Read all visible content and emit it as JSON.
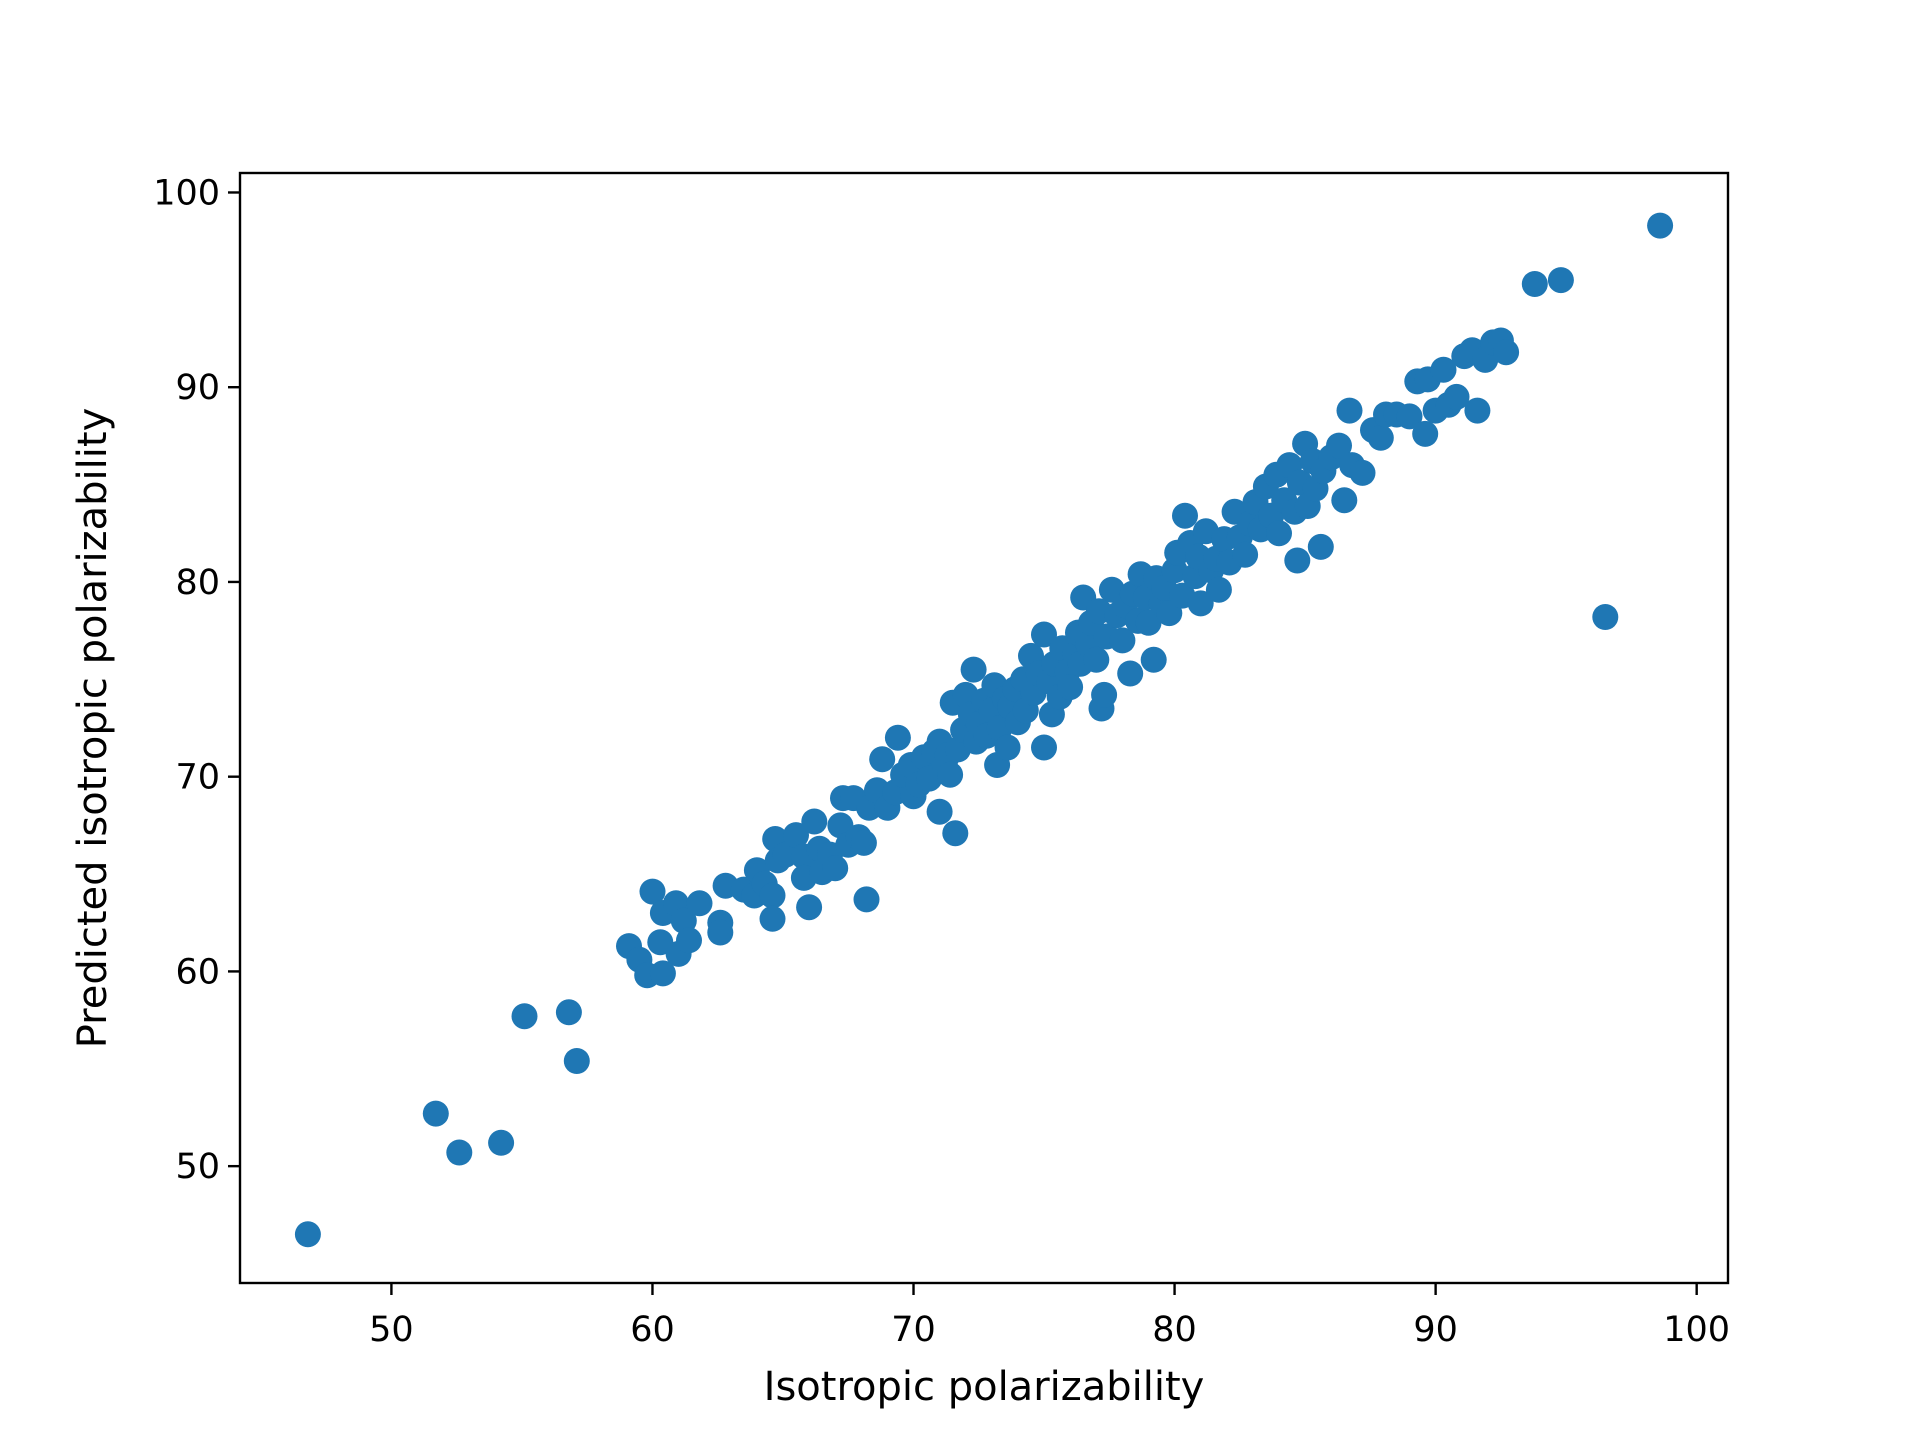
{
  "chart_data": {
    "type": "scatter",
    "xlabel": "Isotropic polarizability",
    "ylabel": "Predicted isotropic polarizability",
    "xlim": [
      44.2,
      101.2
    ],
    "ylim": [
      44.0,
      101.0
    ],
    "xticks": [
      50,
      60,
      70,
      80,
      90,
      100
    ],
    "yticks": [
      50,
      60,
      70,
      80,
      90,
      100
    ],
    "grid": false,
    "marker_color": "#1f77b4",
    "series": [
      {
        "points": [
          [
            46.8,
            46.5
          ],
          [
            51.7,
            52.7
          ],
          [
            52.6,
            50.7
          ],
          [
            54.2,
            51.2
          ],
          [
            55.1,
            57.7
          ],
          [
            56.8,
            57.9
          ],
          [
            57.1,
            55.4
          ],
          [
            59.1,
            61.3
          ],
          [
            59.5,
            60.6
          ],
          [
            59.8,
            59.8
          ],
          [
            60.0,
            64.1
          ],
          [
            60.3,
            61.5
          ],
          [
            60.4,
            63.0
          ],
          [
            60.4,
            59.9
          ],
          [
            60.9,
            63.5
          ],
          [
            61.0,
            60.9
          ],
          [
            61.2,
            62.6
          ],
          [
            61.4,
            61.6
          ],
          [
            61.8,
            63.5
          ],
          [
            62.6,
            62.5
          ],
          [
            62.6,
            62.0
          ],
          [
            62.8,
            64.4
          ],
          [
            63.5,
            64.2
          ],
          [
            63.9,
            63.9
          ],
          [
            64.0,
            65.2
          ],
          [
            64.3,
            64.5
          ],
          [
            64.6,
            63.9
          ],
          [
            64.6,
            62.7
          ],
          [
            64.7,
            66.8
          ],
          [
            64.8,
            65.7
          ],
          [
            65.1,
            66.0
          ],
          [
            65.5,
            67.0
          ],
          [
            65.8,
            65.9
          ],
          [
            65.8,
            64.8
          ],
          [
            66.0,
            63.3
          ],
          [
            66.2,
            67.7
          ],
          [
            66.4,
            66.3
          ],
          [
            66.5,
            65.1
          ],
          [
            66.8,
            66.0
          ],
          [
            67.0,
            65.3
          ],
          [
            67.2,
            67.5
          ],
          [
            67.3,
            68.9
          ],
          [
            67.5,
            66.5
          ],
          [
            67.7,
            68.9
          ],
          [
            67.9,
            66.9
          ],
          [
            68.1,
            66.6
          ],
          [
            68.2,
            63.7
          ],
          [
            68.3,
            68.4
          ],
          [
            68.6,
            69.3
          ],
          [
            68.8,
            70.9
          ],
          [
            69.0,
            68.4
          ],
          [
            69.3,
            69.2
          ],
          [
            69.4,
            72.0
          ],
          [
            69.6,
            70.1
          ],
          [
            69.9,
            70.6
          ],
          [
            70.0,
            69.0
          ],
          [
            70.2,
            69.6
          ],
          [
            70.4,
            71.0
          ],
          [
            70.6,
            69.9
          ],
          [
            70.8,
            71.3
          ],
          [
            71.0,
            68.2
          ],
          [
            71.0,
            71.8
          ],
          [
            71.2,
            70.6
          ],
          [
            71.3,
            71.1
          ],
          [
            71.4,
            70.1
          ],
          [
            71.5,
            73.8
          ],
          [
            71.6,
            67.1
          ],
          [
            71.7,
            71.4
          ],
          [
            71.9,
            72.4
          ],
          [
            72.0,
            74.2
          ],
          [
            72.2,
            73.2
          ],
          [
            72.3,
            75.5
          ],
          [
            72.4,
            71.8
          ],
          [
            72.5,
            72.7
          ],
          [
            72.7,
            73.9
          ],
          [
            72.8,
            72.1
          ],
          [
            73.0,
            73.4
          ],
          [
            73.1,
            74.7
          ],
          [
            73.2,
            70.6
          ],
          [
            73.3,
            72.5
          ],
          [
            73.5,
            74.0
          ],
          [
            73.6,
            71.5
          ],
          [
            73.7,
            73.6
          ],
          [
            73.9,
            74.5
          ],
          [
            74.0,
            72.8
          ],
          [
            74.2,
            75.0
          ],
          [
            74.3,
            73.4
          ],
          [
            74.5,
            76.2
          ],
          [
            74.6,
            74.3
          ],
          [
            74.8,
            75.3
          ],
          [
            75.0,
            71.5
          ],
          [
            75.0,
            77.3
          ],
          [
            75.2,
            74.9
          ],
          [
            75.3,
            73.2
          ],
          [
            75.4,
            75.8
          ],
          [
            75.6,
            74.1
          ],
          [
            75.7,
            76.6
          ],
          [
            75.9,
            75.4
          ],
          [
            76.0,
            74.6
          ],
          [
            76.2,
            76.3
          ],
          [
            76.3,
            77.4
          ],
          [
            76.4,
            75.8
          ],
          [
            76.5,
            79.2
          ],
          [
            76.7,
            76.8
          ],
          [
            76.8,
            77.9
          ],
          [
            77.0,
            76.0
          ],
          [
            77.1,
            78.5
          ],
          [
            77.2,
            73.5
          ],
          [
            77.3,
            74.2
          ],
          [
            77.4,
            77.2
          ],
          [
            77.6,
            79.6
          ],
          [
            77.8,
            78.3
          ],
          [
            78.0,
            77.0
          ],
          [
            78.1,
            78.8
          ],
          [
            78.3,
            75.3
          ],
          [
            78.4,
            79.4
          ],
          [
            78.6,
            78.0
          ],
          [
            78.7,
            80.4
          ],
          [
            78.9,
            79.2
          ],
          [
            79.0,
            77.9
          ],
          [
            79.2,
            76.0
          ],
          [
            79.3,
            80.2
          ],
          [
            79.5,
            78.9
          ],
          [
            79.6,
            79.7
          ],
          [
            79.8,
            78.4
          ],
          [
            80.0,
            80.6
          ],
          [
            80.1,
            81.5
          ],
          [
            80.3,
            79.3
          ],
          [
            80.4,
            83.4
          ],
          [
            80.6,
            82.0
          ],
          [
            80.8,
            80.3
          ],
          [
            80.9,
            81.3
          ],
          [
            81.0,
            78.9
          ],
          [
            81.2,
            82.6
          ],
          [
            81.4,
            80.6
          ],
          [
            81.6,
            81.2
          ],
          [
            81.7,
            79.6
          ],
          [
            81.9,
            82.2
          ],
          [
            82.1,
            81.0
          ],
          [
            82.3,
            83.6
          ],
          [
            82.5,
            82.3
          ],
          [
            82.7,
            81.4
          ],
          [
            82.9,
            83.0
          ],
          [
            83.1,
            84.1
          ],
          [
            83.3,
            82.7
          ],
          [
            83.5,
            84.9
          ],
          [
            83.7,
            83.4
          ],
          [
            83.9,
            85.5
          ],
          [
            84.0,
            82.5
          ],
          [
            84.2,
            84.2
          ],
          [
            84.4,
            86.0
          ],
          [
            84.6,
            83.6
          ],
          [
            84.7,
            81.1
          ],
          [
            84.8,
            85.1
          ],
          [
            85.0,
            87.1
          ],
          [
            85.1,
            83.9
          ],
          [
            85.3,
            86.2
          ],
          [
            85.4,
            84.8
          ],
          [
            85.6,
            81.8
          ],
          [
            85.7,
            85.7
          ],
          [
            86.0,
            86.4
          ],
          [
            86.3,
            87.0
          ],
          [
            86.5,
            84.2
          ],
          [
            86.7,
            88.8
          ],
          [
            86.8,
            86.0
          ],
          [
            87.2,
            85.6
          ],
          [
            87.6,
            87.8
          ],
          [
            87.9,
            87.4
          ],
          [
            88.1,
            88.6
          ],
          [
            88.5,
            88.6
          ],
          [
            89.0,
            88.5
          ],
          [
            89.3,
            90.3
          ],
          [
            89.6,
            87.6
          ],
          [
            89.7,
            90.4
          ],
          [
            90.0,
            88.8
          ],
          [
            90.3,
            90.9
          ],
          [
            90.5,
            89.1
          ],
          [
            90.8,
            89.5
          ],
          [
            91.1,
            91.6
          ],
          [
            91.4,
            91.9
          ],
          [
            91.6,
            88.8
          ],
          [
            91.9,
            91.4
          ],
          [
            92.2,
            92.3
          ],
          [
            92.5,
            92.4
          ],
          [
            92.7,
            91.8
          ],
          [
            93.8,
            95.3
          ],
          [
            94.8,
            95.5
          ],
          [
            96.5,
            78.2
          ],
          [
            98.6,
            98.3
          ]
        ]
      }
    ]
  }
}
